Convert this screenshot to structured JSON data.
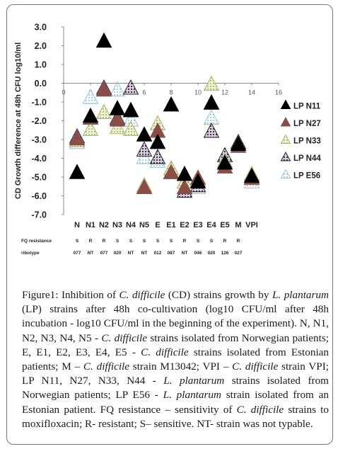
{
  "chart_data": {
    "type": "scatter",
    "ylabel": "CD Growth difference at 48h CFU log10/ml",
    "ylim": [
      -7.0,
      3.0
    ],
    "xlim": [
      0,
      16
    ],
    "yticks": [
      "3.0",
      "2.0",
      "1.0",
      "0.0",
      "-1.0",
      "-2.0",
      "-3.0",
      "-4.0",
      "-5.0",
      "-6.0",
      "-7.0"
    ],
    "top_xticks": [
      "0",
      "2",
      "4",
      "6",
      "8",
      "10",
      "12",
      "14",
      "16"
    ],
    "categories": [
      "N",
      "N1",
      "N2",
      "N3",
      "N4",
      "N5",
      "E",
      "E1",
      "E2",
      "E3",
      "E4",
      "E5",
      "M",
      "VPI"
    ],
    "category_x": [
      1,
      2,
      3,
      4,
      5,
      6,
      7,
      8,
      9,
      10,
      11,
      12,
      13,
      14
    ],
    "fq_label": "FQ resistance",
    "fq_resistance": [
      "S",
      "R",
      "R",
      "S",
      "S",
      "S",
      "S",
      "S",
      "R",
      "S",
      "S",
      "R",
      "R",
      ""
    ],
    "ribotype_label": "ribotype",
    "ribotypes": [
      "077",
      "NT",
      "077",
      "020",
      "NT",
      "NT",
      "012",
      "087",
      "NT",
      "046",
      "020",
      "126",
      "027",
      ""
    ],
    "grid": false,
    "legend_position": "right",
    "series": [
      {
        "name": "LP N11",
        "color": "#000000",
        "fill": "solid",
        "values": [
          -4.8,
          -1.8,
          2.2,
          -1.4,
          -1.5,
          -2.8,
          -3.2,
          -1.2,
          -4.9,
          -5.3,
          -1.1,
          -4.3,
          -3.3,
          -5.0
        ]
      },
      {
        "name": "LP N27",
        "color": "#8a4e46",
        "fill": "solid",
        "values": [
          -3.0,
          -1.9,
          -0.4,
          -2.0,
          -1.5,
          -5.6,
          -2.6,
          -4.8,
          -5.6,
          -5.1,
          -1.1,
          -4.5,
          -3.4,
          -5.1
        ]
      },
      {
        "name": "LP N33",
        "color": "#a9b46a",
        "fill": "pattern",
        "values": [
          -3.1,
          -2.5,
          -1.6,
          -2.4,
          -2.5,
          -5.5,
          -2.2,
          -4.6,
          -5.3,
          -5.2,
          -0.1,
          -4.2,
          -3.3,
          -4.9
        ]
      },
      {
        "name": "LP N44",
        "color": "#3c2a4a",
        "fill": "pattern",
        "values": [
          -2.9,
          -1.9,
          -0.3,
          -1.9,
          -0.3,
          -3.6,
          -4.0,
          -4.8,
          -5.8,
          -5.5,
          -2.6,
          -3.9,
          -3.2,
          -5.1
        ]
      },
      {
        "name": "LP E56",
        "color": "#8fc6dc",
        "fill": "pattern",
        "values": [
          -3.2,
          -0.8,
          -0.4,
          -0.4,
          -2.0,
          -4.0,
          -4.2,
          -4.6,
          -5.7,
          -5.6,
          -1.9,
          -4.5,
          -3.3,
          -5.3
        ]
      }
    ]
  },
  "caption": {
    "lead": "Figure1:",
    "parts": [
      {
        "t": " Inhibition of ",
        "i": false
      },
      {
        "t": "C. difficile",
        "i": true
      },
      {
        "t": " (CD) strains growth by ",
        "i": false
      },
      {
        "t": "L. plantarum",
        "i": true
      },
      {
        "t": " (LP) strains after 48h co-cultivation (log10 CFU/ml after 48h incubation - log10 CFU/ml in the beginning of the experiment). N, N1, N2, N3, N4, N5 - ",
        "i": false
      },
      {
        "t": "C. difficile",
        "i": true
      },
      {
        "t": " strains isolated from Norwegian patients; E, E1, E2, E3, E4, E5 - ",
        "i": false
      },
      {
        "t": "C. difficile",
        "i": true
      },
      {
        "t": " strains isolated from Estonian patients; M – ",
        "i": false
      },
      {
        "t": "C. difficile",
        "i": true
      },
      {
        "t": " strain M13042; VPI – ",
        "i": false
      },
      {
        "t": "C. difficile",
        "i": true
      },
      {
        "t": " strain VPI; LP N11, N27, N33, N44 - ",
        "i": false
      },
      {
        "t": "L. plantarum",
        "i": true
      },
      {
        "t": " strains isolated from Norwegian patients; LP E56 - ",
        "i": false
      },
      {
        "t": "L. plantarum",
        "i": true
      },
      {
        "t": " strain isolated from an Estonian patient. FQ resistance – sensitivity of ",
        "i": false
      },
      {
        "t": "C. difficile",
        "i": true
      },
      {
        "t": " strains to moxifloxacin; R- resistant; S– sensitive. NT- strain was not typable.",
        "i": false
      }
    ]
  }
}
